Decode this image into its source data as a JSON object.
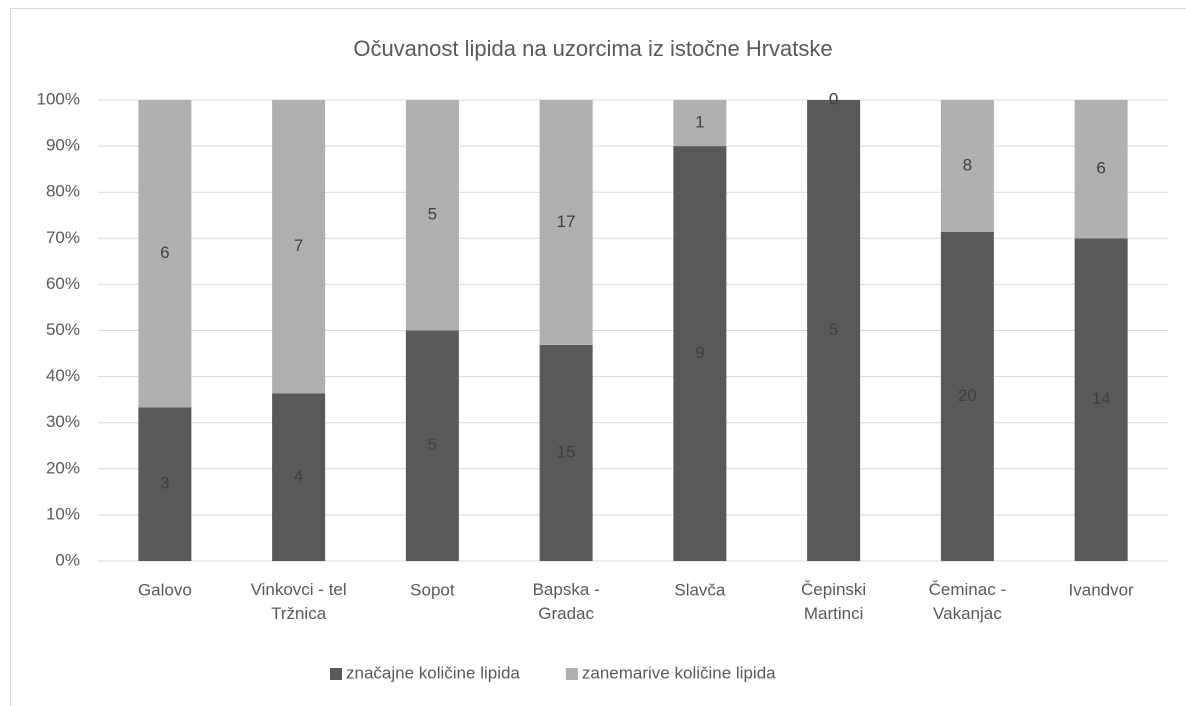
{
  "chart_data": {
    "type": "bar",
    "stacking": "percent",
    "title": "Očuvanost lipida na uzorcima iz istočne Hrvatske",
    "categories": [
      "Galovo",
      "Vinkovci - tel Tržnica",
      "Sopot",
      "Bapska - Gradac",
      "Slavča",
      "Čepinski Martinci",
      "Čeminac - Vakanjac",
      "Ivandvor"
    ],
    "series": [
      {
        "name": "značajne količine lipida",
        "color": "#595959",
        "values": [
          3,
          4,
          5,
          15,
          9,
          5,
          20,
          14
        ]
      },
      {
        "name": "zanemarive količine lipida",
        "color": "#afafaf",
        "values": [
          6,
          7,
          5,
          17,
          1,
          0,
          8,
          6
        ]
      }
    ],
    "ylim": [
      0,
      100
    ],
    "yticks": [
      {
        "value": 0,
        "label": "0%"
      },
      {
        "value": 10,
        "label": "10%"
      },
      {
        "value": 20,
        "label": "20%"
      },
      {
        "value": 30,
        "label": "30%"
      },
      {
        "value": 40,
        "label": "40%"
      },
      {
        "value": 50,
        "label": "50%"
      },
      {
        "value": 60,
        "label": "60%"
      },
      {
        "value": 70,
        "label": "70%"
      },
      {
        "value": 80,
        "label": "80%"
      },
      {
        "value": 90,
        "label": "90%"
      },
      {
        "value": 100,
        "label": "100%"
      }
    ],
    "grid": true,
    "legend": "bottom"
  }
}
